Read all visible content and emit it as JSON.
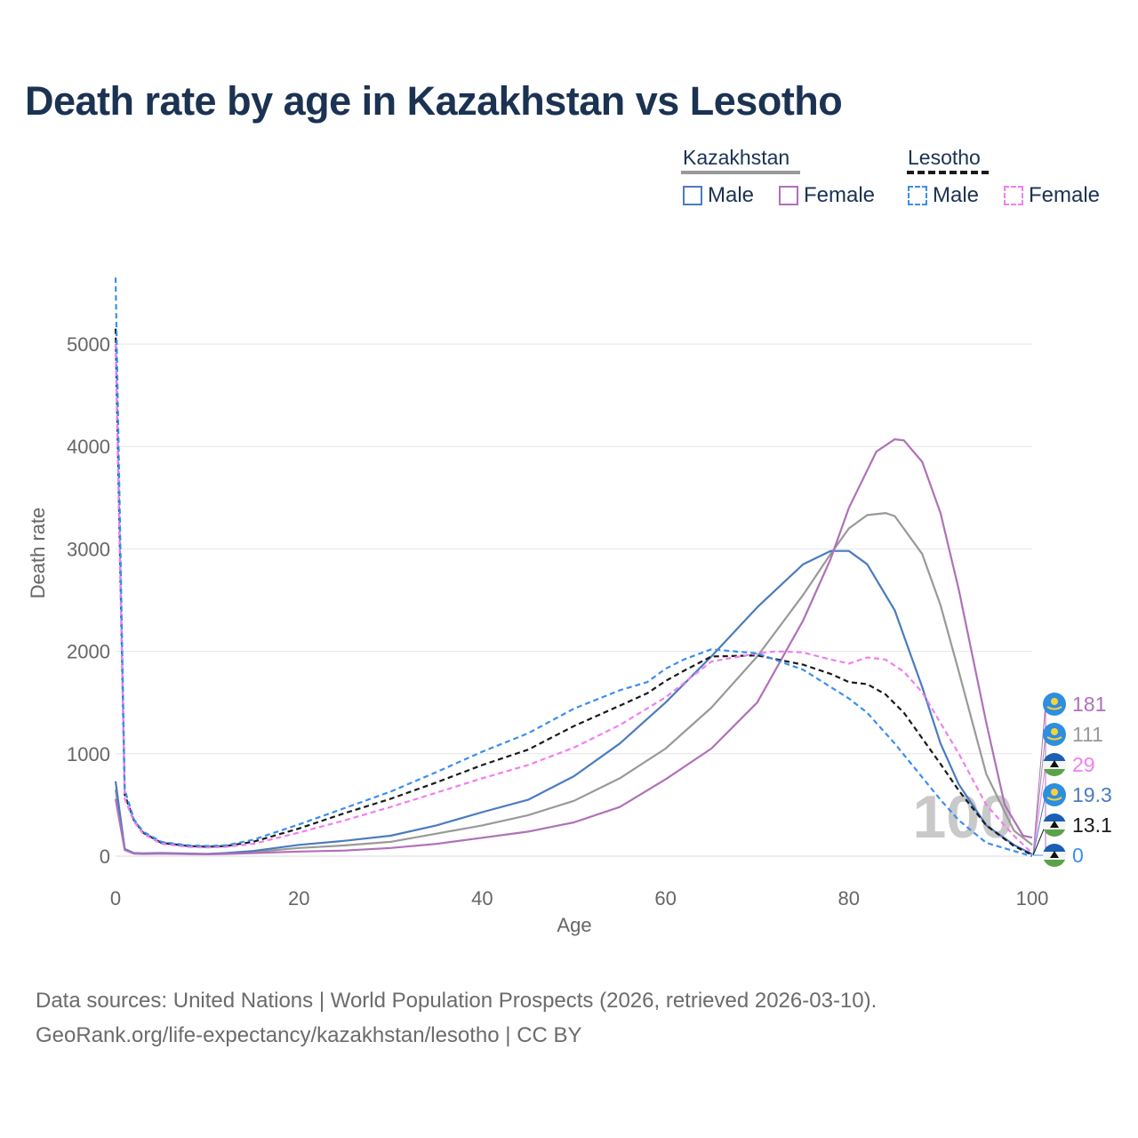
{
  "title": "Death rate by age in Kazakhstan vs Lesotho",
  "legend": {
    "groups": [
      {
        "name": "Kazakhstan",
        "line_style": "solid",
        "items": [
          {
            "label": "Male",
            "color": "#4a7bc0"
          },
          {
            "label": "Female",
            "color": "#b070b8"
          }
        ]
      },
      {
        "name": "Lesotho",
        "line_style": "dashed",
        "items": [
          {
            "label": "Male",
            "color": "#3b8ef0"
          },
          {
            "label": "Female",
            "color": "#f27ef0"
          }
        ]
      }
    ]
  },
  "source": {
    "line1": "Data sources: United Nations | World Population Prospects (2026, retrieved 2026-03-10).",
    "line2": "GeoRank.org/life-expectancy/kazakhstan/lesotho | CC BY"
  },
  "chart_data": {
    "type": "line",
    "title": "Death rate by age in Kazakhstan vs Lesotho",
    "xlabel": "Age",
    "ylabel": "Death rate",
    "xlim": [
      0,
      100
    ],
    "ylim": [
      0,
      5600
    ],
    "x_ticks": [
      "0",
      "20",
      "40",
      "60",
      "80",
      "100"
    ],
    "y_ticks": [
      "0",
      "1000",
      "2000",
      "3000",
      "4000",
      "5000"
    ],
    "watermark": "100",
    "series": [
      {
        "name": "Kazakhstan Male",
        "color": "#4a7bc0",
        "dash": false,
        "x": [
          0,
          1,
          2,
          3,
          5,
          8,
          10,
          12,
          15,
          20,
          25,
          30,
          35,
          40,
          45,
          50,
          55,
          60,
          65,
          70,
          75,
          78,
          80,
          82,
          85,
          88,
          90,
          92,
          95,
          98,
          100
        ],
        "y": [
          730,
          70,
          30,
          28,
          30,
          25,
          22,
          30,
          50,
          110,
          150,
          200,
          300,
          430,
          550,
          780,
          1100,
          1500,
          1950,
          2430,
          2850,
          2980,
          2980,
          2850,
          2400,
          1650,
          1100,
          700,
          300,
          110,
          19.3
        ]
      },
      {
        "name": "Kazakhstan Female",
        "color": "#b070b8",
        "dash": false,
        "x": [
          0,
          1,
          2,
          3,
          5,
          8,
          10,
          12,
          15,
          20,
          25,
          30,
          35,
          40,
          45,
          50,
          55,
          60,
          65,
          70,
          75,
          78,
          80,
          83,
          85,
          86,
          88,
          90,
          92,
          95,
          97,
          99,
          100
        ],
        "y": [
          560,
          60,
          25,
          22,
          25,
          20,
          18,
          22,
          30,
          45,
          55,
          80,
          120,
          180,
          240,
          330,
          480,
          750,
          1050,
          1500,
          2300,
          2900,
          3400,
          3950,
          4070,
          4060,
          3850,
          3350,
          2600,
          1300,
          500,
          200,
          181
        ]
      },
      {
        "name": "Kazakhstan Total",
        "color": "#999999",
        "dash": false,
        "x": [
          0,
          1,
          2,
          3,
          5,
          8,
          10,
          12,
          15,
          20,
          25,
          30,
          35,
          40,
          45,
          50,
          55,
          60,
          65,
          70,
          75,
          78,
          80,
          82,
          84,
          85,
          88,
          90,
          92,
          95,
          98,
          100
        ],
        "y": [
          650,
          65,
          28,
          25,
          28,
          22,
          20,
          26,
          40,
          80,
          105,
          140,
          220,
          300,
          400,
          540,
          760,
          1050,
          1450,
          1950,
          2550,
          2950,
          3200,
          3330,
          3350,
          3320,
          2950,
          2450,
          1800,
          800,
          250,
          111
        ]
      },
      {
        "name": "Lesotho Male",
        "color": "#3b8ef0",
        "dash": true,
        "x": [
          0,
          1,
          2,
          3,
          5,
          8,
          10,
          12,
          15,
          20,
          25,
          30,
          35,
          40,
          45,
          50,
          55,
          58,
          60,
          62,
          65,
          70,
          75,
          80,
          82,
          85,
          88,
          90,
          92,
          95,
          98,
          100
        ],
        "y": [
          5650,
          650,
          360,
          240,
          140,
          105,
          100,
          105,
          160,
          310,
          470,
          630,
          820,
          1020,
          1200,
          1440,
          1620,
          1700,
          1830,
          1920,
          2020,
          1980,
          1820,
          1540,
          1400,
          1100,
          770,
          550,
          350,
          130,
          50,
          0
        ]
      },
      {
        "name": "Lesotho Female",
        "color": "#f27ef0",
        "dash": true,
        "x": [
          0,
          1,
          2,
          3,
          5,
          8,
          10,
          12,
          15,
          20,
          25,
          30,
          35,
          40,
          45,
          50,
          55,
          60,
          65,
          70,
          72,
          75,
          78,
          80,
          82,
          84,
          86,
          88,
          90,
          92,
          95,
          98,
          100
        ],
        "y": [
          5000,
          560,
          340,
          220,
          120,
          90,
          85,
          90,
          120,
          230,
          350,
          480,
          620,
          760,
          890,
          1060,
          1280,
          1550,
          1900,
          1980,
          2000,
          1990,
          1920,
          1880,
          1940,
          1920,
          1800,
          1600,
          1300,
          1000,
          500,
          200,
          29
        ]
      },
      {
        "name": "Lesotho Total",
        "color": "#1a1a1a",
        "dash": true,
        "x": [
          0,
          1,
          2,
          3,
          5,
          8,
          10,
          12,
          15,
          20,
          25,
          30,
          35,
          40,
          45,
          50,
          55,
          58,
          60,
          62,
          65,
          70,
          75,
          78,
          80,
          82,
          84,
          86,
          88,
          90,
          92,
          95,
          98,
          100
        ],
        "y": [
          5150,
          600,
          350,
          230,
          130,
          98,
          92,
          98,
          140,
          270,
          420,
          560,
          720,
          890,
          1040,
          1270,
          1470,
          1590,
          1710,
          1810,
          1950,
          1960,
          1870,
          1780,
          1700,
          1680,
          1580,
          1400,
          1150,
          900,
          640,
          300,
          100,
          13.1
        ]
      }
    ],
    "end_labels": [
      {
        "value": "181",
        "country": "Kazakhstan",
        "color": "#b070b8"
      },
      {
        "value": "111",
        "country": "Kazakhstan",
        "color": "#999999"
      },
      {
        "value": "29",
        "country": "Lesotho",
        "color": "#f27ef0"
      },
      {
        "value": "19.3",
        "country": "Kazakhstan",
        "color": "#4a7bc0"
      },
      {
        "value": "13.1",
        "country": "Lesotho",
        "color": "#1a1a1a"
      },
      {
        "value": "0",
        "country": "Lesotho",
        "color": "#3b8ef0"
      }
    ]
  }
}
